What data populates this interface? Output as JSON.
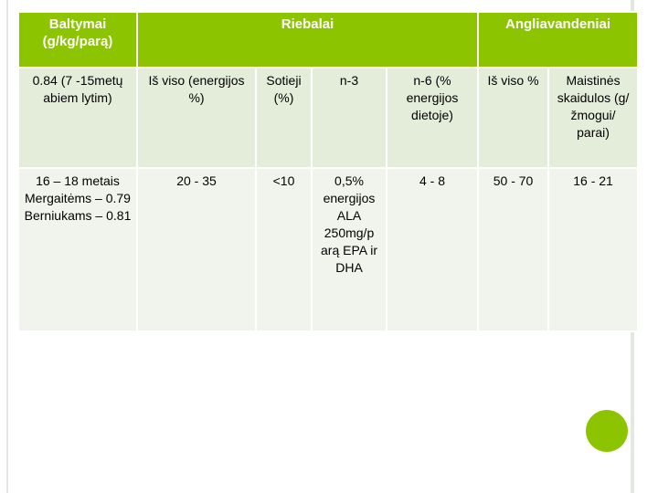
{
  "header": {
    "protein": "Baltymai (g/kg/parą)",
    "fat": "Riebalai",
    "carbs": "Angliavandeniai"
  },
  "row1": {
    "protein": "0.84 (7 -15metų abiem lytim)",
    "fat_total": "Iš viso (energijos %)",
    "saturated": "Sotieji (%)",
    "n3": "n-3",
    "n6": "n-6 (% energijos dietoje)",
    "carb_total": "Iš viso %",
    "fiber": "Maistinės skaidulos (g/žmogui/ parai)"
  },
  "row2": {
    "protein": "16 – 18 metais Mergaitėms – 0.79 Berniukams – 0.81",
    "fat_total": "20 - 35",
    "saturated": "<10",
    "n3": "0,5% energijos ALA 250mg/p arą EPA ir DHA",
    "n6": "4 - 8",
    "carb_total": "50 - 70",
    "fiber": "16 - 21"
  },
  "colors": {
    "header_green": "#8cc400",
    "row1_bg": "#e4ecda",
    "row2_bg": "#f1f4ec"
  }
}
